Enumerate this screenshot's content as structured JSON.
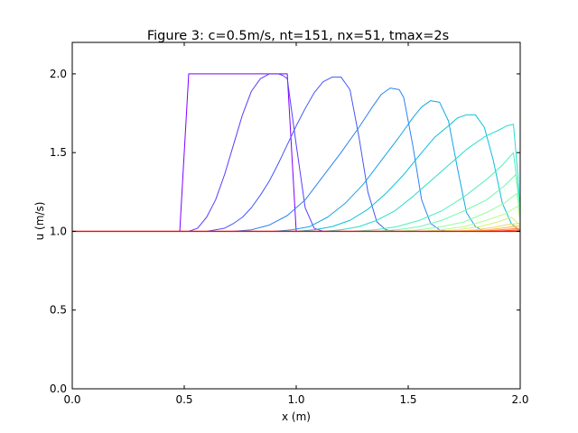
{
  "chart_data": {
    "type": "line",
    "title": "Figure 3: c=0.5m/s, nt=151, nx=51, tmax=2s",
    "xlabel": "x (m)",
    "ylabel": "u (m/s)",
    "xlim": [
      0.0,
      2.0
    ],
    "ylim": [
      0.0,
      2.2
    ],
    "xticks": [
      0.0,
      0.5,
      1.0,
      1.5,
      2.0
    ],
    "xtick_labels": [
      "0.0",
      "0.5",
      "1.0",
      "1.5",
      "2.0"
    ],
    "yticks": [
      0.0,
      0.5,
      1.0,
      1.5,
      2.0
    ],
    "ytick_labels": [
      "0.0",
      "0.5",
      "1.0",
      "1.5",
      "2.0"
    ],
    "grid": false,
    "legend": "none",
    "series": [
      {
        "color": "#8000ff",
        "points": [
          [
            0,
            1
          ],
          [
            0.48,
            1
          ],
          [
            0.52,
            2
          ],
          [
            0.96,
            2
          ],
          [
            1.0,
            1
          ],
          [
            2.0,
            1
          ]
        ]
      },
      {
        "color": "#5a3cfd",
        "points": [
          [
            0,
            1
          ],
          [
            0.52,
            1
          ],
          [
            0.56,
            1.02
          ],
          [
            0.6,
            1.09
          ],
          [
            0.64,
            1.2
          ],
          [
            0.68,
            1.36
          ],
          [
            0.72,
            1.55
          ],
          [
            0.76,
            1.74
          ],
          [
            0.8,
            1.89
          ],
          [
            0.84,
            1.97
          ],
          [
            0.88,
            2.0
          ],
          [
            0.92,
            2.0
          ],
          [
            0.94,
            1.99
          ],
          [
            0.96,
            1.97
          ],
          [
            1.0,
            1.55
          ],
          [
            1.04,
            1.15
          ],
          [
            1.08,
            1.02
          ],
          [
            1.12,
            1.0
          ],
          [
            2.0,
            1
          ]
        ]
      },
      {
        "color": "#4257f9",
        "points": [
          [
            0,
            1
          ],
          [
            0.6,
            1
          ],
          [
            0.64,
            1.01
          ],
          [
            0.68,
            1.02
          ],
          [
            0.72,
            1.05
          ],
          [
            0.76,
            1.09
          ],
          [
            0.8,
            1.15
          ],
          [
            0.84,
            1.23
          ],
          [
            0.88,
            1.32
          ],
          [
            0.92,
            1.43
          ],
          [
            0.96,
            1.55
          ],
          [
            1.0,
            1.67
          ],
          [
            1.04,
            1.78
          ],
          [
            1.08,
            1.88
          ],
          [
            1.12,
            1.95
          ],
          [
            1.16,
            1.98
          ],
          [
            1.2,
            1.98
          ],
          [
            1.24,
            1.9
          ],
          [
            1.28,
            1.6
          ],
          [
            1.32,
            1.25
          ],
          [
            1.36,
            1.06
          ],
          [
            1.4,
            1.01
          ],
          [
            1.44,
            1.0
          ],
          [
            2.0,
            1
          ]
        ]
      },
      {
        "color": "#2a82f2",
        "points": [
          [
            0,
            1
          ],
          [
            0.72,
            1
          ],
          [
            0.8,
            1.01
          ],
          [
            0.88,
            1.04
          ],
          [
            0.96,
            1.1
          ],
          [
            1.04,
            1.2
          ],
          [
            1.12,
            1.35
          ],
          [
            1.2,
            1.5
          ],
          [
            1.28,
            1.66
          ],
          [
            1.34,
            1.79
          ],
          [
            1.38,
            1.87
          ],
          [
            1.42,
            1.91
          ],
          [
            1.46,
            1.9
          ],
          [
            1.48,
            1.85
          ],
          [
            1.52,
            1.55
          ],
          [
            1.56,
            1.2
          ],
          [
            1.6,
            1.05
          ],
          [
            1.64,
            1.01
          ],
          [
            1.68,
            1.0
          ],
          [
            2.0,
            1
          ]
        ]
      },
      {
        "color": "#16a4e6",
        "points": [
          [
            0,
            1
          ],
          [
            0.9,
            1
          ],
          [
            0.98,
            1.01
          ],
          [
            1.06,
            1.03
          ],
          [
            1.14,
            1.09
          ],
          [
            1.22,
            1.18
          ],
          [
            1.3,
            1.3
          ],
          [
            1.38,
            1.45
          ],
          [
            1.46,
            1.6
          ],
          [
            1.52,
            1.72
          ],
          [
            1.56,
            1.79
          ],
          [
            1.6,
            1.83
          ],
          [
            1.64,
            1.82
          ],
          [
            1.68,
            1.7
          ],
          [
            1.72,
            1.4
          ],
          [
            1.76,
            1.12
          ],
          [
            1.8,
            1.03
          ],
          [
            1.84,
            1.0
          ],
          [
            2.0,
            1
          ]
        ]
      },
      {
        "color": "#0ac0d9",
        "points": [
          [
            0,
            1
          ],
          [
            1.0,
            1
          ],
          [
            1.08,
            1.01
          ],
          [
            1.16,
            1.03
          ],
          [
            1.24,
            1.07
          ],
          [
            1.32,
            1.14
          ],
          [
            1.4,
            1.24
          ],
          [
            1.48,
            1.36
          ],
          [
            1.56,
            1.5
          ],
          [
            1.62,
            1.6
          ],
          [
            1.68,
            1.67
          ],
          [
            1.72,
            1.72
          ],
          [
            1.76,
            1.74
          ],
          [
            1.8,
            1.74
          ],
          [
            1.84,
            1.66
          ],
          [
            1.88,
            1.45
          ],
          [
            1.92,
            1.18
          ],
          [
            1.96,
            1.05
          ],
          [
            2.0,
            1.0
          ]
        ]
      },
      {
        "color": "#2adcce",
        "points": [
          [
            0,
            1
          ],
          [
            1.12,
            1
          ],
          [
            1.2,
            1.01
          ],
          [
            1.28,
            1.03
          ],
          [
            1.36,
            1.07
          ],
          [
            1.44,
            1.13
          ],
          [
            1.52,
            1.22
          ],
          [
            1.6,
            1.32
          ],
          [
            1.68,
            1.42
          ],
          [
            1.76,
            1.52
          ],
          [
            1.84,
            1.6
          ],
          [
            1.9,
            1.64
          ],
          [
            1.94,
            1.67
          ],
          [
            1.97,
            1.68
          ],
          [
            1.99,
            1.35
          ],
          [
            2.0,
            1.1
          ]
        ]
      },
      {
        "color": "#4cefc0",
        "points": [
          [
            0,
            1
          ],
          [
            1.25,
            1
          ],
          [
            1.35,
            1.01
          ],
          [
            1.45,
            1.03
          ],
          [
            1.55,
            1.07
          ],
          [
            1.65,
            1.13
          ],
          [
            1.75,
            1.22
          ],
          [
            1.85,
            1.33
          ],
          [
            1.92,
            1.42
          ],
          [
            1.97,
            1.5
          ],
          [
            1.995,
            1.2
          ],
          [
            2.0,
            1.1
          ]
        ]
      },
      {
        "color": "#6ef9b0",
        "points": [
          [
            0,
            1
          ],
          [
            1.35,
            1
          ],
          [
            1.45,
            1.01
          ],
          [
            1.55,
            1.03
          ],
          [
            1.65,
            1.07
          ],
          [
            1.75,
            1.13
          ],
          [
            1.85,
            1.2
          ],
          [
            1.93,
            1.29
          ],
          [
            1.98,
            1.36
          ],
          [
            2.0,
            1.12
          ]
        ]
      },
      {
        "color": "#92fd9f",
        "points": [
          [
            0,
            1
          ],
          [
            1.45,
            1
          ],
          [
            1.55,
            1.01
          ],
          [
            1.65,
            1.03
          ],
          [
            1.75,
            1.06
          ],
          [
            1.85,
            1.12
          ],
          [
            1.93,
            1.18
          ],
          [
            1.985,
            1.24
          ],
          [
            2.0,
            1.08
          ]
        ]
      },
      {
        "color": "#b6fc8c",
        "points": [
          [
            0,
            1
          ],
          [
            1.55,
            1
          ],
          [
            1.65,
            1.01
          ],
          [
            1.75,
            1.03
          ],
          [
            1.85,
            1.07
          ],
          [
            1.93,
            1.11
          ],
          [
            1.99,
            1.16
          ],
          [
            2.0,
            1.05
          ]
        ]
      },
      {
        "color": "#d6f076",
        "points": [
          [
            0,
            1
          ],
          [
            1.62,
            1
          ],
          [
            1.72,
            1.01
          ],
          [
            1.82,
            1.03
          ],
          [
            1.9,
            1.06
          ],
          [
            1.96,
            1.09
          ],
          [
            2.0,
            1.04
          ]
        ]
      },
      {
        "color": "#f2d660",
        "points": [
          [
            0,
            1
          ],
          [
            1.7,
            1
          ],
          [
            1.8,
            1.01
          ],
          [
            1.88,
            1.025
          ],
          [
            1.95,
            1.045
          ],
          [
            2.0,
            1.05
          ]
        ]
      },
      {
        "color": "#ffb24a",
        "points": [
          [
            0,
            1
          ],
          [
            1.76,
            1
          ],
          [
            1.86,
            1.01
          ],
          [
            1.94,
            1.025
          ],
          [
            2.0,
            1.035
          ]
        ]
      },
      {
        "color": "#ff8533",
        "points": [
          [
            0,
            1
          ],
          [
            1.82,
            1
          ],
          [
            1.9,
            1.008
          ],
          [
            2.0,
            1.02
          ]
        ]
      },
      {
        "color": "#ff561d",
        "points": [
          [
            0,
            1
          ],
          [
            1.88,
            1
          ],
          [
            2.0,
            1.01
          ]
        ]
      },
      {
        "color": "#ff0000",
        "points": [
          [
            0,
            1
          ],
          [
            2.0,
            1
          ]
        ]
      }
    ]
  }
}
